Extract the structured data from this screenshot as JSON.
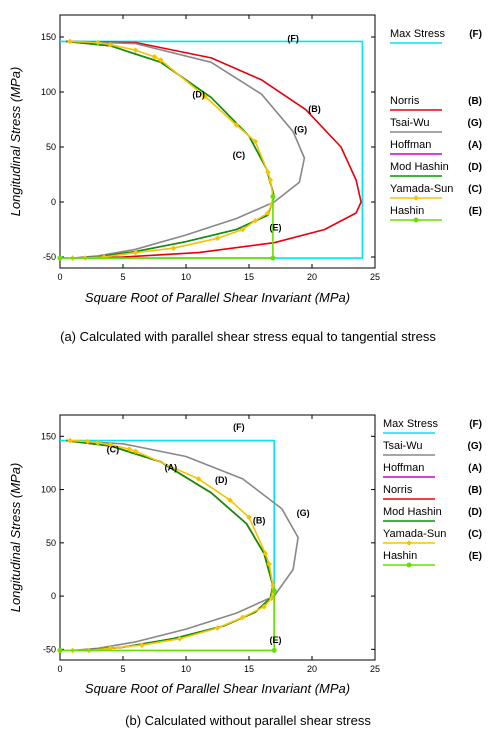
{
  "chart_data": [
    {
      "type": "line",
      "caption": "(a) Calculated with parallel shear stress equal to tangential stress",
      "xlabel": "Square Root of Parallel Shear Invariant (MPa)",
      "ylabel": "Longitudinal Stress (MPa)",
      "xlim": [
        0,
        25
      ],
      "ylim": [
        -60,
        170
      ],
      "xticks": [
        "0",
        "5",
        "10",
        "15",
        "20",
        "25"
      ],
      "yticks": [
        "-50",
        "0",
        "50",
        "100",
        "150"
      ],
      "legend_position": "right",
      "series": [
        {
          "name": "Max Stress",
          "code": "(F)",
          "color": "#00e5ee",
          "marker": "none",
          "label_at": [
            18.5,
            146
          ],
          "points": [
            [
              0,
              146
            ],
            [
              24,
              146
            ],
            [
              24,
              -51
            ],
            [
              0,
              -51
            ]
          ]
        },
        {
          "name": "Norris",
          "code": "(B)",
          "color": "#e8000b",
          "marker": "none",
          "label_at": [
            20.2,
            82
          ],
          "points": [
            [
              0.5,
              146
            ],
            [
              6,
              145
            ],
            [
              12,
              131
            ],
            [
              16,
              111
            ],
            [
              19.5,
              84
            ],
            [
              22.3,
              50
            ],
            [
              23.5,
              20
            ],
            [
              23.9,
              0
            ],
            [
              23.5,
              -10
            ],
            [
              21,
              -25
            ],
            [
              17,
              -37
            ],
            [
              11,
              -46
            ],
            [
              5,
              -50
            ],
            [
              2,
              -51
            ]
          ]
        },
        {
          "name": "Tsai-Wu",
          "code": "(G)",
          "color": "#888888",
          "marker": "none",
          "label_at": [
            19.1,
            63
          ],
          "points": [
            [
              0.5,
              146
            ],
            [
              6,
              144
            ],
            [
              12,
              127
            ],
            [
              16,
              98
            ],
            [
              18.5,
              64
            ],
            [
              19.4,
              40
            ],
            [
              19,
              18
            ],
            [
              17,
              0
            ],
            [
              14,
              -15
            ],
            [
              10,
              -30
            ],
            [
              6,
              -43
            ],
            [
              3,
              -49
            ],
            [
              1,
              -51
            ]
          ]
        },
        {
          "name": "Hoffman",
          "code": "(A)",
          "color": "#cc00cc",
          "marker": "none",
          "points": [
            [
              0.5,
              146
            ],
            [
              4,
              142
            ],
            [
              8,
              127
            ],
            [
              12,
              95
            ],
            [
              15,
              60
            ],
            [
              16.4,
              30
            ],
            [
              17,
              5
            ],
            [
              16.5,
              -12
            ],
            [
              14,
              -25
            ],
            [
              10,
              -36
            ],
            [
              6,
              -45
            ],
            [
              3,
              -50
            ],
            [
              1,
              -51
            ]
          ]
        },
        {
          "name": "Mod Hashin",
          "code": "(D)",
          "color": "#009a00",
          "marker": "none",
          "label_at": [
            11,
            95
          ],
          "points": [
            [
              0.5,
              146
            ],
            [
              4,
              142
            ],
            [
              8,
              127
            ],
            [
              12,
              95
            ],
            [
              15,
              60
            ],
            [
              16.4,
              30
            ],
            [
              17,
              5
            ],
            [
              16.5,
              -12
            ],
            [
              14,
              -25
            ],
            [
              10,
              -36
            ],
            [
              6,
              -45
            ],
            [
              3,
              -50
            ],
            [
              1,
              -51
            ]
          ]
        },
        {
          "name": "Yamada-Sun",
          "code": "(C)",
          "color": "#f5c400",
          "marker": "diamond",
          "label_at": [
            14.2,
            40
          ],
          "points": [
            [
              0.8,
              146
            ],
            [
              3,
              145
            ],
            [
              4,
              143
            ],
            [
              6,
              138
            ],
            [
              7.5,
              132
            ],
            [
              8,
              129
            ],
            [
              11.5,
              96
            ],
            [
              14,
              70
            ],
            [
              15.5,
              55
            ],
            [
              16.5,
              27
            ],
            [
              16.7,
              20
            ],
            [
              16.9,
              5
            ],
            [
              16.8,
              -2
            ],
            [
              16.5,
              -10
            ],
            [
              15.5,
              -17
            ],
            [
              14.5,
              -25
            ],
            [
              12.5,
              -33
            ],
            [
              9,
              -42
            ],
            [
              6,
              -46
            ],
            [
              3.5,
              -50
            ],
            [
              2,
              -51
            ],
            [
              1,
              -51
            ]
          ]
        },
        {
          "name": "Hashin",
          "code": "(E)",
          "color": "#66e000",
          "marker": "circle",
          "label_at": [
            17.1,
            -26
          ],
          "points": [
            [
              0,
              -51
            ],
            [
              16.9,
              -51
            ],
            [
              16.9,
              5
            ]
          ]
        }
      ]
    },
    {
      "type": "line",
      "caption": "(b) Calculated without parallel shear stress",
      "xlabel": "Square Root of Parallel Shear Invariant (MPa)",
      "ylabel": "Longitudinal Stress (MPa)",
      "xlim": [
        0,
        25
      ],
      "ylim": [
        -60,
        170
      ],
      "xticks": [
        "0",
        "5",
        "10",
        "15",
        "20",
        "25"
      ],
      "yticks": [
        "-50",
        "0",
        "50",
        "100",
        "150"
      ],
      "legend_position": "right",
      "series": [
        {
          "name": "Max Stress",
          "code": "(F)",
          "color": "#00e5ee",
          "marker": "none",
          "label_at": [
            14.2,
            156
          ],
          "points": [
            [
              0,
              146
            ],
            [
              17,
              146
            ],
            [
              17,
              -51
            ]
          ]
        },
        {
          "name": "Tsai-Wu",
          "code": "(G)",
          "color": "#888888",
          "marker": "none",
          "label_at": [
            19.3,
            75
          ],
          "points": [
            [
              0.5,
              146
            ],
            [
              5,
              143
            ],
            [
              10,
              131
            ],
            [
              14.5,
              110
            ],
            [
              17.6,
              82
            ],
            [
              18.9,
              55
            ],
            [
              18.5,
              25
            ],
            [
              17,
              0
            ],
            [
              14,
              -16
            ],
            [
              10,
              -31
            ],
            [
              6,
              -43
            ],
            [
              3,
              -49
            ],
            [
              1,
              -51
            ]
          ]
        },
        {
          "name": "Hoffman",
          "code": "(A)",
          "color": "#cc00cc",
          "marker": "none",
          "label_at": [
            8.8,
            118
          ],
          "points": [
            [
              0.5,
              146
            ],
            [
              4,
              141
            ],
            [
              8,
              126
            ],
            [
              12,
              97
            ],
            [
              14.8,
              68
            ],
            [
              16.2,
              40
            ],
            [
              16.9,
              10
            ],
            [
              16.7,
              -2
            ],
            [
              15.5,
              -15
            ],
            [
              13,
              -28
            ],
            [
              9,
              -40
            ],
            [
              5,
              -48
            ],
            [
              2,
              -51
            ]
          ]
        },
        {
          "name": "Norris",
          "code": "(B)",
          "color": "#e8000b",
          "marker": "none",
          "label_at": [
            15.8,
            68
          ],
          "points": [
            [
              0.5,
              146
            ],
            [
              4,
              141
            ],
            [
              8,
              126
            ],
            [
              12,
              97
            ],
            [
              14.8,
              68
            ],
            [
              16.2,
              40
            ],
            [
              16.9,
              10
            ],
            [
              16.7,
              -2
            ],
            [
              15.5,
              -15
            ],
            [
              13,
              -28
            ],
            [
              9,
              -40
            ],
            [
              5,
              -48
            ],
            [
              2,
              -51
            ]
          ]
        },
        {
          "name": "Mod Hashin",
          "code": "(D)",
          "color": "#009a00",
          "marker": "none",
          "label_at": [
            12.8,
            106
          ],
          "points": [
            [
              0.5,
              146
            ],
            [
              4,
              141
            ],
            [
              8,
              126
            ],
            [
              12,
              97
            ],
            [
              14.8,
              68
            ],
            [
              16.2,
              40
            ],
            [
              16.9,
              10
            ],
            [
              16.7,
              -2
            ],
            [
              15.5,
              -15
            ],
            [
              13,
              -28
            ],
            [
              9,
              -40
            ],
            [
              5,
              -48
            ],
            [
              2,
              -51
            ]
          ]
        },
        {
          "name": "Yamada-Sun",
          "code": "(C)",
          "color": "#f5c400",
          "marker": "diamond",
          "label_at": [
            4.2,
            135
          ],
          "points": [
            [
              0.8,
              146
            ],
            [
              2.2,
              145
            ],
            [
              3,
              144
            ],
            [
              4,
              142
            ],
            [
              5.5,
              138
            ],
            [
              6,
              136
            ],
            [
              11,
              110
            ],
            [
              13.5,
              90
            ],
            [
              15,
              74
            ],
            [
              16.3,
              40
            ],
            [
              16.6,
              30
            ],
            [
              16.9,
              10
            ],
            [
              16.8,
              -2
            ],
            [
              16.2,
              -10
            ],
            [
              14.5,
              -20
            ],
            [
              12.5,
              -30
            ],
            [
              9.5,
              -40
            ],
            [
              6.5,
              -46
            ],
            [
              4,
              -49
            ],
            [
              2.3,
              -51
            ],
            [
              1,
              -51
            ]
          ]
        },
        {
          "name": "Hashin",
          "code": "(E)",
          "color": "#66e000",
          "marker": "circle",
          "label_at": [
            17.1,
            -44
          ],
          "points": [
            [
              0,
              -51
            ],
            [
              17,
              -51
            ],
            [
              17,
              5
            ]
          ]
        }
      ]
    }
  ]
}
